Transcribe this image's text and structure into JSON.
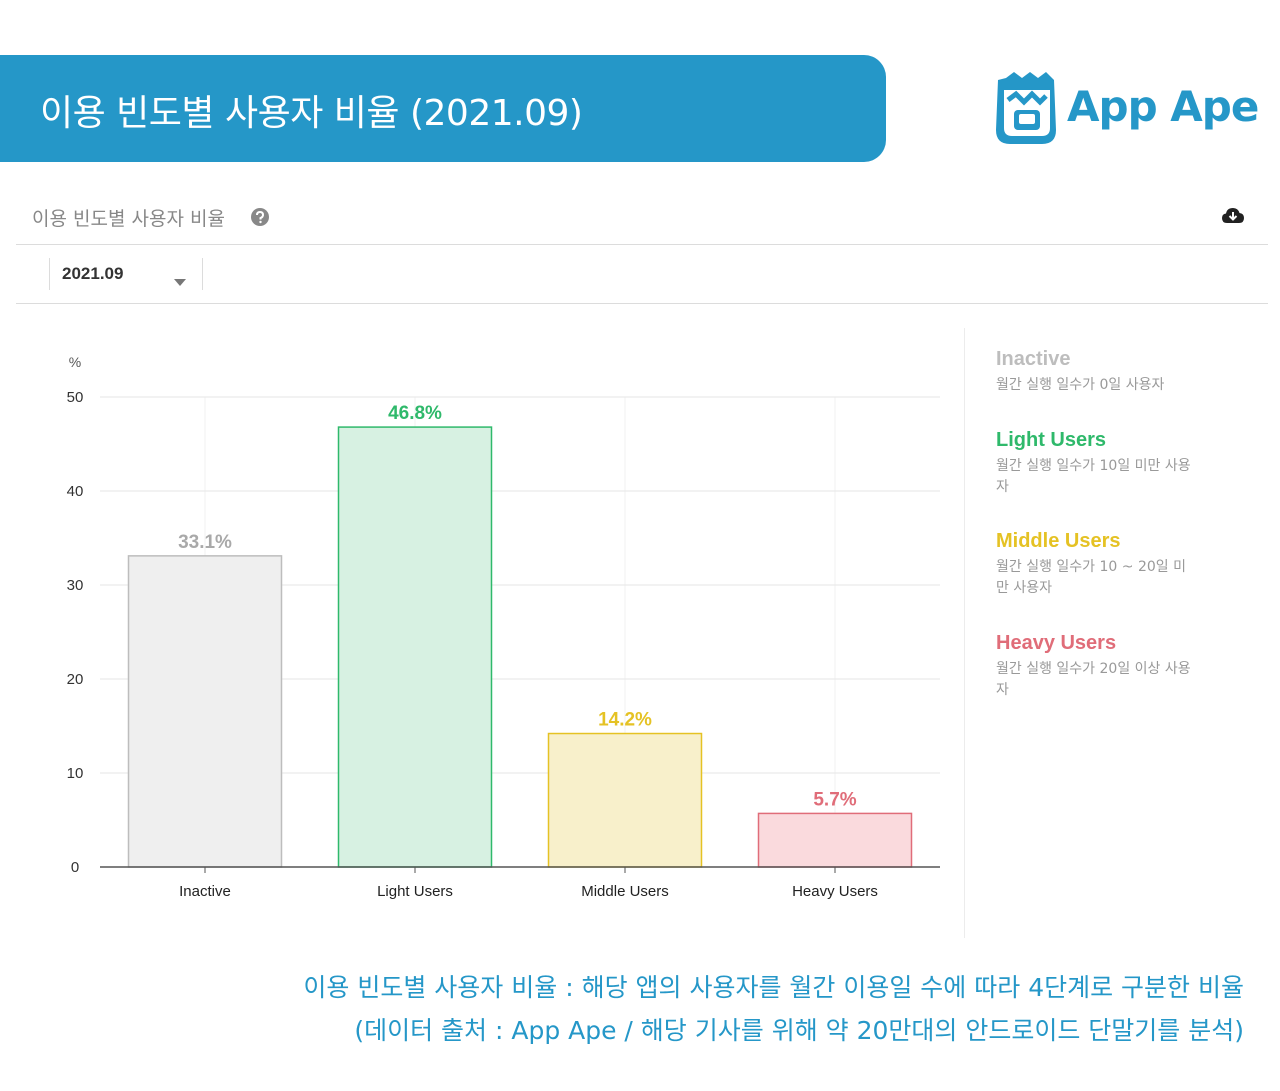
{
  "header": {
    "banner_title": "이용 빈도별 사용자 비율 (2021.09)",
    "logo_text": "App Ape"
  },
  "panel": {
    "title": "이용 빈도별 사용자 비율",
    "help_icon": "question-circle-icon",
    "download_icon": "cloud-download-icon",
    "period_select": {
      "value": "2021.09"
    }
  },
  "chart_data": {
    "type": "bar",
    "y_unit": "%",
    "ylim": [
      0,
      50
    ],
    "yticks": [
      0,
      10,
      20,
      30,
      40,
      50
    ],
    "categories": [
      "Inactive",
      "Light Users",
      "Middle Users",
      "Heavy Users"
    ],
    "values": [
      33.1,
      46.8,
      14.2,
      5.7
    ],
    "value_labels": [
      "33.1%",
      "46.8%",
      "14.2%",
      "5.7%"
    ],
    "colors": {
      "fill": [
        "#efefef",
        "#d7f1e2",
        "#f8f0cb",
        "#fadadd"
      ],
      "stroke": [
        "#bdbdbd",
        "#2fb96b",
        "#e5c224",
        "#e06d79"
      ],
      "label": [
        "#a9a9a9",
        "#2fb96b",
        "#e5c224",
        "#e06d79"
      ]
    },
    "grid": true
  },
  "legend": [
    {
      "name": "Inactive",
      "desc": "월간 실행 일수가 0일 사용자",
      "color": "#bdbdbd"
    },
    {
      "name": "Light Users",
      "desc": "월간 실행 일수가 10일 미만 사용자",
      "color": "#2fb96b"
    },
    {
      "name": "Middle Users",
      "desc": "월간 실행 일수가 10 ~ 20일 미만 사용자",
      "color": "#e5c224"
    },
    {
      "name": "Heavy Users",
      "desc": "월간 실행 일수가 20일 이상 사용자",
      "color": "#e06d79"
    }
  ],
  "caption": {
    "line1": "이용 빈도별 사용자 비율 : 해당 앱의 사용자를 월간 이용일 수에 따라 4단계로 구분한 비율",
    "line2": "(데이터 출처 : App Ape / 해당 기사를 위해 약 20만대의 안드로이드 단말기를 분석)"
  }
}
